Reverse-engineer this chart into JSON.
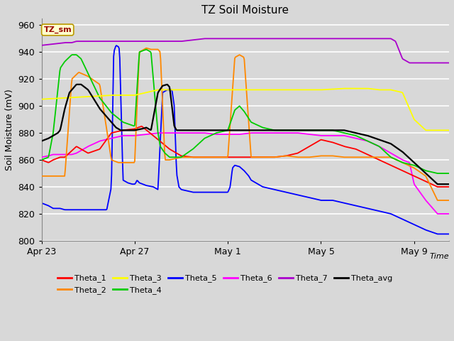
{
  "title": "TZ Soil Moisture",
  "ylabel": "Soil Moisture (mV)",
  "xlabel": "Time",
  "ylim": [
    800,
    965
  ],
  "yticks": [
    800,
    820,
    840,
    860,
    880,
    900,
    920,
    940,
    960
  ],
  "xtick_labels": [
    "Apr 23",
    "Apr 27",
    "May 1",
    "May 5",
    "May 9"
  ],
  "xtick_pos": [
    0,
    4,
    8,
    12,
    16
  ],
  "xlim": [
    0,
    17.5
  ],
  "fig_width": 6.4,
  "fig_height": 4.8,
  "dpi": 100,
  "background_color": "#d8d8d8",
  "plot_bg_color": "#d8d8d8",
  "colors": {
    "Theta_1": "#ff0000",
    "Theta_2": "#ff8800",
    "Theta_3": "#ffff00",
    "Theta_4": "#00cc00",
    "Theta_5": "#0000ff",
    "Theta_6": "#ff00ff",
    "Theta_7": "#aa00cc",
    "Theta_avg": "#000000"
  },
  "lw": 1.3,
  "n_points": 600,
  "Theta_1_x": [
    0,
    0.3,
    0.5,
    0.8,
    1.0,
    1.5,
    2.0,
    2.5,
    3.0,
    3.5,
    4.0,
    4.3,
    4.8,
    5.5,
    6.0,
    6.5,
    7.0,
    7.5,
    8.0,
    8.5,
    9.0,
    9.5,
    10.0,
    10.5,
    11.0,
    11.5,
    12.0,
    12.5,
    13.0,
    13.5,
    14.0,
    14.5,
    15.0,
    15.5,
    16.0,
    16.5,
    17.0
  ],
  "Theta_1_y": [
    860,
    858,
    860,
    862,
    862,
    870,
    865,
    868,
    880,
    882,
    883,
    885,
    878,
    868,
    863,
    862,
    862,
    862,
    862,
    862,
    862,
    862,
    862,
    863,
    865,
    870,
    875,
    873,
    870,
    868,
    864,
    860,
    856,
    852,
    848,
    844,
    840
  ],
  "Theta_2_x": [
    0,
    0.2,
    0.5,
    0.8,
    1.0,
    1.3,
    1.6,
    2.0,
    2.5,
    3.0,
    3.3,
    3.5,
    3.7,
    4.0,
    4.2,
    4.5,
    4.7,
    5.0,
    5.1,
    5.3,
    5.5,
    6.0,
    6.5,
    7.0,
    7.5,
    8.0,
    8.3,
    8.5,
    8.7,
    9.0,
    9.3,
    9.5,
    10.0,
    10.5,
    11.0,
    11.5,
    12.0,
    12.5,
    13.0,
    13.5,
    14.0,
    14.5,
    15.0,
    15.5,
    16.0,
    16.5,
    17.0
  ],
  "Theta_2_y": [
    848,
    848,
    848,
    848,
    848,
    920,
    925,
    922,
    916,
    860,
    858,
    858,
    858,
    858,
    940,
    943,
    942,
    942,
    940,
    860,
    860,
    862,
    862,
    862,
    862,
    862,
    936,
    938,
    936,
    862,
    862,
    862,
    862,
    863,
    862,
    862,
    863,
    863,
    862,
    862,
    862,
    862,
    862,
    858,
    854,
    848,
    830
  ],
  "Theta_3_x": [
    0,
    1,
    2,
    3,
    4,
    5,
    6,
    7,
    8,
    9,
    10,
    11,
    12,
    13,
    14,
    14.5,
    15.0,
    15.5,
    16.0,
    16.5,
    17.0
  ],
  "Theta_3_y": [
    905,
    906,
    907,
    908,
    908,
    912,
    912,
    912,
    912,
    912,
    912,
    912,
    912,
    913,
    913,
    912,
    912,
    910,
    890,
    882,
    882
  ],
  "Theta_4_x": [
    0,
    0.3,
    0.5,
    0.8,
    1.0,
    1.3,
    1.5,
    1.7,
    2.0,
    2.5,
    3.0,
    3.5,
    4.0,
    4.2,
    4.5,
    4.7,
    5.0,
    5.1,
    5.3,
    5.5,
    6.0,
    6.5,
    7.0,
    7.5,
    8.0,
    8.3,
    8.5,
    8.7,
    9.0,
    9.5,
    10.0,
    10.5,
    11.0,
    11.5,
    12.0,
    12.5,
    13.0,
    13.5,
    14.0,
    14.5,
    15.0,
    15.5,
    16.0,
    16.5,
    17.0
  ],
  "Theta_4_y": [
    860,
    862,
    880,
    928,
    933,
    938,
    938,
    935,
    924,
    906,
    895,
    888,
    885,
    940,
    942,
    940,
    880,
    870,
    865,
    862,
    862,
    868,
    876,
    880,
    882,
    897,
    900,
    896,
    888,
    884,
    882,
    882,
    882,
    882,
    882,
    882,
    880,
    878,
    874,
    870,
    862,
    858,
    856,
    852,
    850
  ],
  "Theta_5_x": [
    0,
    0.3,
    0.5,
    0.8,
    1.0,
    1.3,
    1.5,
    2.0,
    2.5,
    2.8,
    3.0,
    3.1,
    3.2,
    3.3,
    3.35,
    3.5,
    3.7,
    3.9,
    4.0,
    4.05,
    4.1,
    4.2,
    4.5,
    4.8,
    5.0,
    5.2,
    5.4,
    5.6,
    5.7,
    5.8,
    5.9,
    6.0,
    6.5,
    7.0,
    7.5,
    8.0,
    8.1,
    8.2,
    8.3,
    8.5,
    8.7,
    8.9,
    9.0,
    9.5,
    10.0,
    10.5,
    11.0,
    11.5,
    12.0,
    12.5,
    13.0,
    13.5,
    14.0,
    14.5,
    15.0,
    15.5,
    16.0,
    16.5,
    17.0
  ],
  "Theta_5_y": [
    828,
    826,
    824,
    824,
    823,
    823,
    823,
    823,
    823,
    823,
    840,
    940,
    945,
    944,
    942,
    845,
    843,
    842,
    842,
    843,
    845,
    843,
    841,
    840,
    838,
    910,
    912,
    912,
    900,
    850,
    840,
    838,
    836,
    836,
    836,
    836,
    840,
    854,
    856,
    855,
    852,
    848,
    845,
    840,
    838,
    836,
    834,
    832,
    830,
    830,
    828,
    826,
    824,
    822,
    820,
    816,
    812,
    808,
    805
  ],
  "Theta_6_x": [
    0,
    0.3,
    0.5,
    0.8,
    1.0,
    1.3,
    1.5,
    2.0,
    2.5,
    3.0,
    3.5,
    4.0,
    4.5,
    5.0,
    5.5,
    6.0,
    6.5,
    7.0,
    7.5,
    8.0,
    8.5,
    9.0,
    9.5,
    10.0,
    10.5,
    11.0,
    11.5,
    12.0,
    12.5,
    13.0,
    13.5,
    14.0,
    14.5,
    15.0,
    15.3,
    15.5,
    15.8,
    16.0,
    16.5,
    17.0
  ],
  "Theta_6_y": [
    862,
    863,
    864,
    864,
    864,
    864,
    865,
    870,
    874,
    876,
    878,
    878,
    879,
    880,
    880,
    880,
    880,
    880,
    879,
    879,
    879,
    880,
    880,
    880,
    880,
    880,
    879,
    878,
    878,
    878,
    876,
    874,
    870,
    865,
    862,
    860,
    858,
    842,
    830,
    820
  ],
  "Theta_7_x": [
    0,
    0.5,
    1.0,
    1.3,
    1.5,
    2.0,
    3.0,
    4.0,
    5.0,
    6.0,
    6.5,
    7.0,
    7.5,
    8.0,
    9.0,
    10.0,
    11.0,
    11.5,
    12.0,
    13.0,
    14.0,
    14.5,
    14.8,
    15.0,
    15.2,
    15.5,
    15.8,
    16.0,
    16.5,
    17.0
  ],
  "Theta_7_y": [
    945,
    946,
    947,
    947,
    948,
    948,
    948,
    948,
    948,
    948,
    949,
    950,
    950,
    950,
    950,
    950,
    950,
    950,
    950,
    950,
    950,
    950,
    950,
    950,
    948,
    935,
    932,
    932,
    932,
    932
  ],
  "Theta_avg_x": [
    0,
    0.3,
    0.5,
    0.7,
    0.8,
    1.0,
    1.2,
    1.4,
    1.5,
    1.7,
    2.0,
    2.5,
    3.0,
    3.1,
    3.2,
    3.3,
    3.4,
    3.5,
    3.7,
    4.0,
    4.3,
    4.5,
    4.7,
    5.0,
    5.2,
    5.4,
    5.5,
    5.6,
    5.7,
    5.8,
    6.0,
    6.5,
    7.0,
    7.5,
    8.0,
    8.5,
    9.0,
    9.5,
    10.0,
    10.5,
    11.0,
    11.5,
    12.0,
    12.5,
    13.0,
    13.5,
    14.0,
    14.5,
    15.0,
    15.5,
    16.0,
    16.5,
    17.0
  ],
  "Theta_avg_y": [
    874,
    876,
    878,
    880,
    882,
    898,
    910,
    914,
    916,
    916,
    912,
    898,
    888,
    886,
    884,
    883,
    882,
    882,
    882,
    882,
    883,
    884,
    882,
    910,
    915,
    916,
    914,
    900,
    885,
    882,
    882,
    882,
    882,
    882,
    882,
    882,
    882,
    882,
    882,
    882,
    882,
    882,
    882,
    882,
    882,
    880,
    878,
    875,
    872,
    866,
    858,
    850,
    842
  ]
}
